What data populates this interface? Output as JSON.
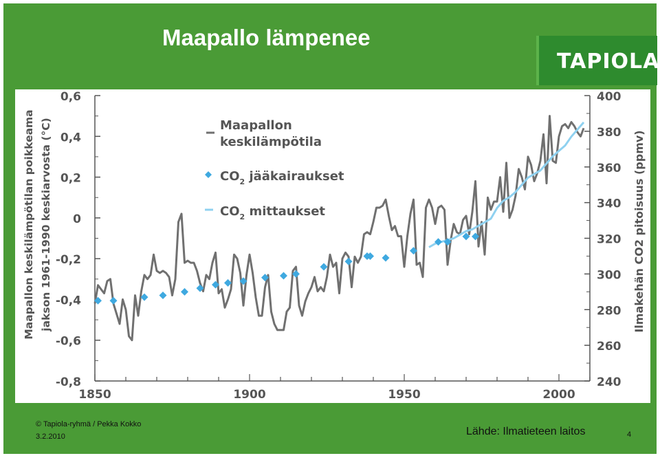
{
  "slide": {
    "title": "Maapallo lämpenee",
    "logo": "TAPIOLA",
    "footer": {
      "copyright": "© Tapiola-ryhmä / Pekka Kokko",
      "date": "3.2.2010",
      "source": "Lähde: Ilmatieteen laitos",
      "page_number": "4"
    },
    "colors": {
      "background": "#4a9b36",
      "logo_box": "#2e8b2e",
      "temperature_line": "#707070",
      "co2_marker": "#3fa9e0",
      "co2_line": "#8fd1f0"
    }
  },
  "chart_data": {
    "type": "line",
    "ylabel_left": "Maapallon keskilämpötilan poikkeama jakson 1961-1990 keskiarvosta (°C)",
    "ylabel_right": "Ilmakehän CO2 pitoisuus (ppmv)",
    "xlim": [
      1850,
      2010
    ],
    "ylim_left": [
      -0.8,
      0.6
    ],
    "ylim_right": [
      240,
      400
    ],
    "x_ticks": [
      "1850",
      "1900",
      "1950",
      "2000"
    ],
    "y_ticks_left": [
      "0,6",
      "0,4",
      "0,2",
      "0",
      "-0,2",
      "-0,4",
      "-0,6",
      "-0,8"
    ],
    "y_ticks_right": [
      "400",
      "380",
      "360",
      "340",
      "320",
      "300",
      "280",
      "260",
      "240"
    ],
    "legend": {
      "temperature": [
        "Maapallon",
        "keskilämpötila"
      ],
      "co2_ice": {
        "main": "CO",
        "sub": "2",
        "rest": " jääkairaukset"
      },
      "co2_measured": {
        "main": "CO",
        "sub": "2",
        "rest": " mittaukset"
      }
    },
    "series": [
      {
        "name": "Maapallon keskilämpötila",
        "axis": "left",
        "x": [
          1850,
          1851,
          1852,
          1853,
          1854,
          1855,
          1856,
          1857,
          1858,
          1859,
          1860,
          1861,
          1862,
          1863,
          1864,
          1865,
          1866,
          1867,
          1868,
          1869,
          1870,
          1871,
          1872,
          1873,
          1874,
          1875,
          1876,
          1877,
          1878,
          1879,
          1880,
          1881,
          1882,
          1883,
          1884,
          1885,
          1886,
          1887,
          1888,
          1889,
          1890,
          1891,
          1892,
          1893,
          1894,
          1895,
          1896,
          1897,
          1898,
          1899,
          1900,
          1901,
          1902,
          1903,
          1904,
          1905,
          1906,
          1907,
          1908,
          1909,
          1910,
          1911,
          1912,
          1913,
          1914,
          1915,
          1916,
          1917,
          1918,
          1919,
          1920,
          1921,
          1922,
          1923,
          1924,
          1925,
          1926,
          1927,
          1928,
          1929,
          1930,
          1931,
          1932,
          1933,
          1934,
          1935,
          1936,
          1937,
          1938,
          1939,
          1940,
          1941,
          1942,
          1943,
          1944,
          1945,
          1946,
          1947,
          1948,
          1949,
          1950,
          1951,
          1952,
          1953,
          1954,
          1955,
          1956,
          1957,
          1958,
          1959,
          1960,
          1961,
          1962,
          1963,
          1964,
          1965,
          1966,
          1967,
          1968,
          1969,
          1970,
          1971,
          1972,
          1973,
          1974,
          1975,
          1976,
          1977,
          1978,
          1979,
          1980,
          1981,
          1982,
          1983,
          1984,
          1985,
          1986,
          1987,
          1988,
          1989,
          1990,
          1991,
          1992,
          1993,
          1994,
          1995,
          1996,
          1997,
          1998,
          1999,
          2000,
          2001,
          2002,
          2003,
          2004,
          2005,
          2006,
          2007,
          2008
        ],
        "y": [
          -0.42,
          -0.33,
          -0.35,
          -0.37,
          -0.31,
          -0.3,
          -0.42,
          -0.47,
          -0.52,
          -0.4,
          -0.45,
          -0.58,
          -0.6,
          -0.38,
          -0.48,
          -0.36,
          -0.28,
          -0.3,
          -0.28,
          -0.18,
          -0.26,
          -0.27,
          -0.26,
          -0.27,
          -0.29,
          -0.38,
          -0.3,
          -0.02,
          0.02,
          -0.22,
          -0.21,
          -0.22,
          -0.22,
          -0.26,
          -0.32,
          -0.36,
          -0.28,
          -0.3,
          -0.22,
          -0.17,
          -0.37,
          -0.35,
          -0.44,
          -0.4,
          -0.35,
          -0.18,
          -0.2,
          -0.27,
          -0.43,
          -0.28,
          -0.18,
          -0.27,
          -0.39,
          -0.48,
          -0.48,
          -0.34,
          -0.28,
          -0.46,
          -0.52,
          -0.55,
          -0.55,
          -0.55,
          -0.46,
          -0.44,
          -0.26,
          -0.24,
          -0.43,
          -0.48,
          -0.41,
          -0.37,
          -0.34,
          -0.29,
          -0.36,
          -0.34,
          -0.36,
          -0.29,
          -0.18,
          -0.24,
          -0.22,
          -0.37,
          -0.2,
          -0.17,
          -0.19,
          -0.34,
          -0.19,
          -0.22,
          -0.19,
          -0.08,
          -0.07,
          -0.08,
          -0.02,
          0.05,
          0.05,
          0.06,
          0.09,
          0.01,
          -0.06,
          -0.04,
          -0.09,
          -0.09,
          -0.24,
          -0.09,
          0.02,
          0.09,
          -0.23,
          -0.22,
          -0.29,
          0.05,
          0.09,
          0.05,
          -0.03,
          0.05,
          0.06,
          0.04,
          -0.23,
          -0.11,
          -0.03,
          -0.07,
          -0.08,
          -0.01,
          0.01,
          -0.08,
          0.03,
          0.18,
          -0.14,
          -0.02,
          -0.18,
          0.1,
          0.04,
          0.08,
          0.08,
          0.2,
          0.03,
          0.27,
          0.0,
          0.04,
          0.11,
          0.24,
          0.2,
          0.14,
          0.3,
          0.26,
          0.18,
          0.22,
          0.28,
          0.41,
          0.17,
          0.5,
          0.28,
          0.27,
          0.4,
          0.45,
          0.46,
          0.44,
          0.47,
          0.45,
          0.42,
          0.4,
          0.44
        ],
        "color": "#707070"
      },
      {
        "name": "CO2 jääkairaukset",
        "axis": "right",
        "x": [
          1851,
          1856,
          1866,
          1872,
          1879,
          1884,
          1889,
          1893,
          1898,
          1905,
          1911,
          1915,
          1924,
          1932,
          1938,
          1939,
          1944,
          1953,
          1961,
          1964,
          1970,
          1973
        ],
        "y": [
          285,
          285,
          287,
          288,
          290,
          292,
          294,
          295,
          296,
          298,
          299,
          300,
          304,
          307,
          310,
          310,
          309,
          313,
          318,
          318,
          321,
          321
        ],
        "color": "#3fa9e0"
      },
      {
        "name": "CO2 mittaukset",
        "axis": "right",
        "x": [
          1958,
          1960,
          1962,
          1964,
          1966,
          1968,
          1970,
          1972,
          1974,
          1976,
          1978,
          1980,
          1982,
          1984,
          1986,
          1988,
          1990,
          1992,
          1994,
          1996,
          1998,
          2000,
          2002,
          2004,
          2006,
          2008
        ],
        "y": [
          315,
          317,
          318,
          319,
          320,
          322,
          324,
          325,
          327,
          329,
          331,
          337,
          341,
          343,
          346,
          350,
          354,
          356,
          358,
          362,
          366,
          369,
          372,
          377,
          381,
          385
        ],
        "color": "#8fd1f0"
      }
    ]
  }
}
